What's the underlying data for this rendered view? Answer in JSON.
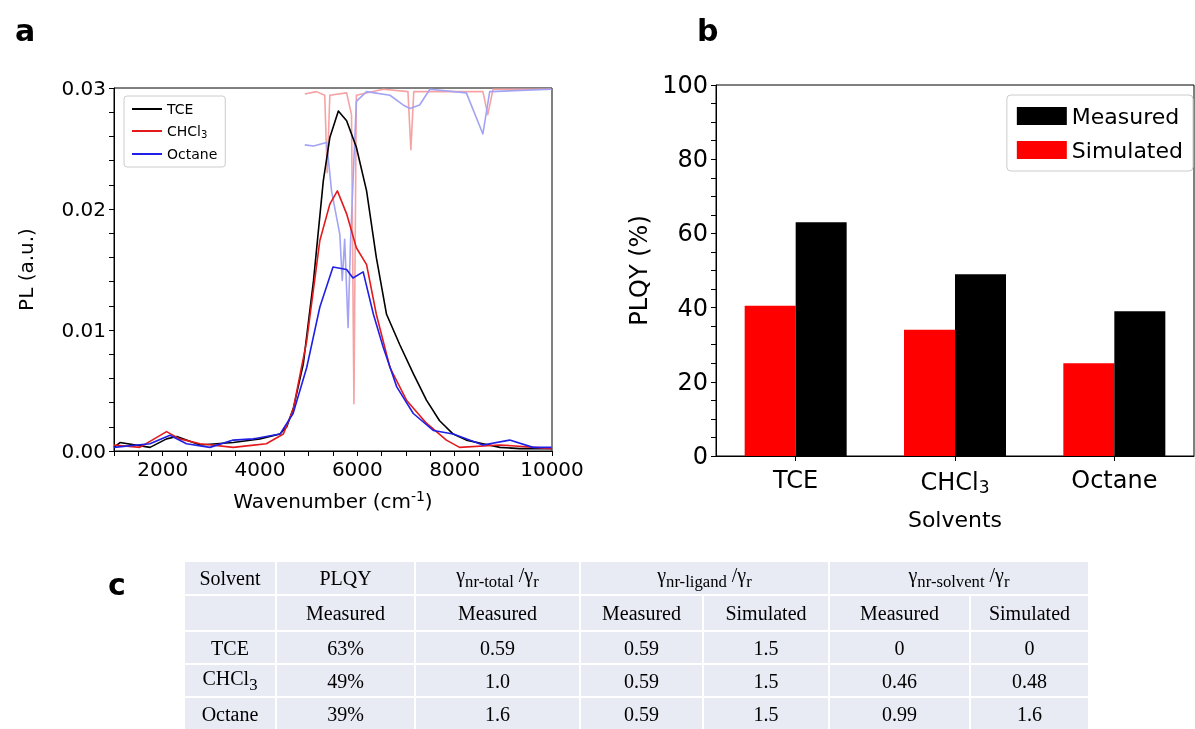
{
  "chart_data": [
    {
      "type": "line",
      "title": "a",
      "xlabel": "Wavenumber (cm$^{-1}$)",
      "ylabel": "PL (a.u.)",
      "legend": "top left",
      "marker": "none",
      "line_style": "solid",
      "xlim": [
        1000,
        10000
      ],
      "xticks": [
        {
          "value": 1000,
          "label": null
        },
        {
          "value": 1500,
          "label": null
        },
        2000,
        {
          "value": 2500,
          "label": null
        },
        {
          "value": 3000,
          "label": null
        },
        {
          "value": 3500,
          "label": null
        },
        4000,
        {
          "value": 4500,
          "label": null
        },
        {
          "value": 5000,
          "label": null
        },
        {
          "value": 5500,
          "label": null
        },
        6000,
        {
          "value": 6500,
          "label": null
        },
        {
          "value": 7000,
          "label": null
        },
        {
          "value": 7500,
          "label": null
        },
        8000,
        {
          "value": 8500,
          "label": null
        },
        {
          "value": 9000,
          "label": null
        },
        {
          "value": 9500,
          "label": null
        },
        10000
      ],
      "ylim": [
        0,
        0.03
      ],
      "yticks": [
        {
          "value": 0,
          "label": "0.00"
        },
        {
          "value": 0.002,
          "label": null
        },
        {
          "value": 0.004,
          "label": null
        },
        {
          "value": 0.006,
          "label": null
        },
        {
          "value": 0.008,
          "label": null
        },
        {
          "value": 0.01,
          "label": "0.01"
        },
        {
          "value": 0.012,
          "label": null
        },
        {
          "value": 0.014,
          "label": null
        },
        {
          "value": 0.016,
          "label": null
        },
        {
          "value": 0.018,
          "label": null
        },
        {
          "value": 0.02,
          "label": "0.02"
        },
        {
          "value": 0.022,
          "label": null
        },
        {
          "value": 0.024,
          "label": null
        },
        {
          "value": 0.026,
          "label": null
        },
        {
          "value": 0.028,
          "label": null
        },
        {
          "value": 0.03,
          "label": "0.03"
        }
      ],
      "series": [
        {
          "color": "#f5a3a3",
          "x": [
            4920,
            5160,
            5330,
            5380,
            5435,
            5780,
            5880,
            5930,
            5980,
            6530,
            7040,
            7100,
            7160,
            8580,
            8680,
            8790,
            9990
          ],
          "values": [
            0.0295,
            0.0297,
            0.0294,
            0.023,
            0.0294,
            0.0296,
            0.0278,
            0.0039,
            0.0294,
            0.0299,
            0.0297,
            0.0249,
            0.0297,
            0.0297,
            0.0278,
            0.0299,
            0.0299
          ]
        },
        {
          "color": "#a3a3f5",
          "x": [
            4920,
            5100,
            5370,
            5470,
            5640,
            5690,
            5740,
            5810,
            5860,
            5980,
            6190,
            6670,
            6940,
            7080,
            7280,
            7490,
            8240,
            8580,
            8720,
            9990
          ],
          "values": [
            0.0253,
            0.0252,
            0.0255,
            0.0215,
            0.0179,
            0.0141,
            0.0175,
            0.0102,
            0.0173,
            0.0289,
            0.0297,
            0.0294,
            0.0286,
            0.0283,
            0.0286,
            0.0299,
            0.0296,
            0.0262,
            0.0297,
            0.0299
          ]
        },
        {
          "name": "TCE",
          "color": "#000000",
          "x": [
            1000,
            1123,
            1740,
            2080,
            2290,
            2770,
            3450,
            4000,
            4410,
            4550,
            4690,
            4890,
            5100,
            5300,
            5435,
            5610,
            5780,
            5980,
            6190,
            6390,
            6600,
            6870,
            7150,
            7420,
            7690,
            7970,
            8240,
            8580,
            8930,
            9340,
            9990
          ],
          "values": [
            0.0003,
            0.0007,
            0.0003,
            0.001,
            0.0012,
            0.0005,
            0.0007,
            0.001,
            0.0014,
            0.002,
            0.0036,
            0.0072,
            0.0141,
            0.0223,
            0.0259,
            0.0281,
            0.0273,
            0.0251,
            0.0215,
            0.016,
            0.0113,
            0.0088,
            0.0064,
            0.0042,
            0.0025,
            0.0014,
            0.0009,
            0.0006,
            0.0003,
            0.0002,
            0.0002
          ]
        },
        {
          "name": "CHCl$_{3}$",
          "color": "#e31a1c",
          "x": [
            1000,
            1530,
            2080,
            2350,
            2770,
            3450,
            4130,
            4480,
            4680,
            4960,
            5230,
            5435,
            5590,
            5780,
            5980,
            6190,
            6390,
            6670,
            7010,
            7420,
            7830,
            8100,
            8930,
            9990
          ],
          "values": [
            0.0005,
            0.0003,
            0.0016,
            0.001,
            0.0006,
            0.0003,
            0.0006,
            0.0014,
            0.0034,
            0.0091,
            0.0174,
            0.0204,
            0.0215,
            0.0196,
            0.0168,
            0.0154,
            0.0113,
            0.0069,
            0.0042,
            0.0023,
            0.0009,
            0.0003,
            0.0005,
            0.0002
          ]
        },
        {
          "name": "Octane",
          "color": "#1f1fe6",
          "x": [
            1000,
            1740,
            2150,
            2490,
            2970,
            3450,
            3860,
            4410,
            4680,
            4960,
            5230,
            5500,
            5780,
            5910,
            6120,
            6330,
            6530,
            6810,
            7150,
            7560,
            7970,
            8580,
            9130,
            9610,
            9990
          ],
          "values": [
            0.0003,
            0.0006,
            0.0013,
            0.0006,
            0.0003,
            0.0009,
            0.001,
            0.0014,
            0.0031,
            0.0069,
            0.0119,
            0.0152,
            0.015,
            0.0143,
            0.0148,
            0.0113,
            0.0086,
            0.0053,
            0.0031,
            0.0017,
            0.0014,
            0.0005,
            0.0009,
            0.0003,
            0.0003
          ]
        }
      ]
    },
    {
      "type": "bar",
      "title": "b",
      "xlabel": "Solvents",
      "ylabel": "PLQY (%)",
      "legend": "top right",
      "categories": [
        "TCE",
        "CHCl$_{3}$",
        "Octane"
      ],
      "ylim": [
        0,
        100
      ],
      "yticks": [
        0,
        {
          "value": 5,
          "label": null
        },
        {
          "value": 10,
          "label": null
        },
        {
          "value": 15,
          "label": null
        },
        20,
        {
          "value": 25,
          "label": null
        },
        {
          "value": 30,
          "label": null
        },
        {
          "value": 35,
          "label": null
        },
        40,
        {
          "value": 45,
          "label": null
        },
        {
          "value": 50,
          "label": null
        },
        {
          "value": 55,
          "label": null
        },
        60,
        {
          "value": 65,
          "label": null
        },
        {
          "value": 70,
          "label": null
        },
        {
          "value": 75,
          "label": null
        },
        80,
        {
          "value": 85,
          "label": null
        },
        {
          "value": 90,
          "label": null
        },
        {
          "value": 95,
          "label": null
        },
        100
      ],
      "series": [
        {
          "name": "Simulated",
          "color": "#ff0000",
          "values": [
            40.5,
            34,
            25
          ]
        },
        {
          "name": "Measured",
          "color": "#000000",
          "values": [
            63,
            49,
            39
          ]
        }
      ]
    },
    {
      "type": "other",
      "title": "c",
      "annotations": [
        "Solvent",
        "PLQY",
        "γ$_{nr-total}$ /γ$_{r}$",
        "γ$_{nr-ligand}$ /γ$_{r}$",
        "γ$_{nr-solvent}$ /γ$_{r}$",
        "Measured",
        "Measured",
        "Measured",
        "Simulated",
        "Measured",
        "Simulated",
        "TCE",
        "63%",
        "0.59",
        "0.59",
        "1.5",
        "0",
        "0",
        "CHCl$_{3}$",
        "49%",
        "1.0",
        "0.59",
        "1.5",
        "0.46",
        "0.48",
        "Octane",
        "39%",
        "1.6",
        "0.59",
        "1.5",
        "0.99",
        "1.6"
      ]
    }
  ]
}
